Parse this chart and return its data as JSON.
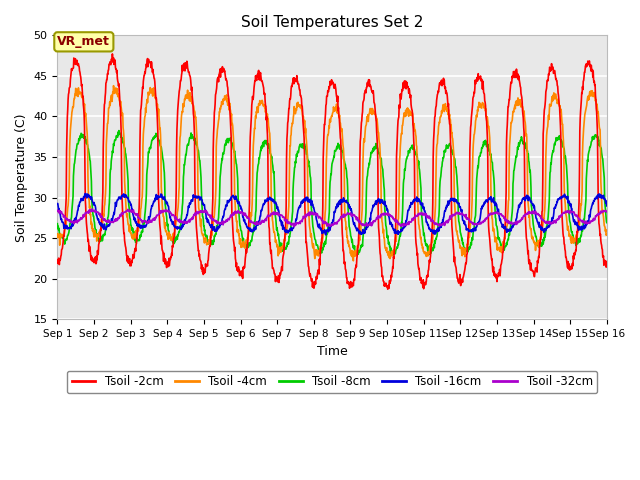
{
  "title": "Soil Temperatures Set 2",
  "xlabel": "Time",
  "ylabel": "Soil Temperature (C)",
  "ylim": [
    15,
    50
  ],
  "yticks": [
    15,
    20,
    25,
    30,
    35,
    40,
    45,
    50
  ],
  "x_labels": [
    "Sep 1",
    "Sep 2",
    "Sep 3",
    "Sep 4",
    "Sep 5",
    "Sep 6",
    "Sep 7",
    "Sep 8",
    "Sep 9",
    "Sep 10",
    "Sep 11",
    "Sep 12",
    "Sep 13",
    "Sep 14",
    "Sep 15",
    "Sep 16"
  ],
  "annotation_text": "VR_met",
  "colors": {
    "Tsoil -2cm": "#ff0000",
    "Tsoil -4cm": "#ff8800",
    "Tsoil -8cm": "#00cc00",
    "Tsoil -16cm": "#0000dd",
    "Tsoil -32cm": "#aa00cc"
  },
  "bg_color": "#e8e8e8",
  "grid_color": "#ffffff",
  "figsize": [
    6.4,
    4.8
  ],
  "dpi": 100
}
